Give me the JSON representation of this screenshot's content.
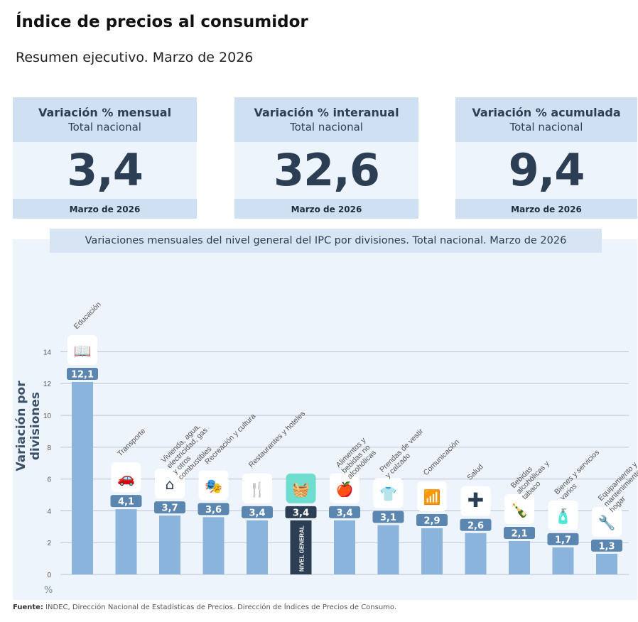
{
  "header": {
    "title": "Índice de precios al consumidor",
    "subtitle": "Resumen ejecutivo. Marzo de 2026"
  },
  "cards": [
    {
      "title": "Variación % mensual",
      "scope": "Total nacional",
      "value": "3,4",
      "period": "Marzo de 2026"
    },
    {
      "title": "Variación % interanual",
      "scope": "Total nacional",
      "value": "32,6",
      "period": "Marzo de 2026"
    },
    {
      "title": "Variación % acumulada",
      "scope": "Total nacional",
      "value": "9,4",
      "period": "Marzo de 2026"
    }
  ],
  "colors": {
    "bar": "#8ab4dc",
    "highlight_bar": "#2b3e53",
    "badge": "#5b86b0",
    "highlight_icon": "#6fdcd0"
  },
  "chart_data": {
    "type": "bar",
    "title": "Variaciones mensuales del nivel general del IPC por divisiones. Total nacional. Marzo de 2026",
    "ylabel": "Variación por divisiones",
    "yunit": "%",
    "ylim": [
      0,
      14
    ],
    "yticks": [
      0,
      2,
      4,
      6,
      8,
      10,
      12,
      14
    ],
    "grid": true,
    "highlight_label": "NIVEL GENERAL",
    "categories": [
      "Educación",
      "Transporte",
      "Vivienda, agua, electricidad, gas y otros combustibles",
      "Recreación y cultura",
      "Restaurantes y hoteles",
      "Nivel general",
      "Alimentos y bebidas no alcohólicas",
      "Prendas de vestir y calzado",
      "Comunicación",
      "Salud",
      "Bebidas alcohólicas y tabaco",
      "Bienes y servicios varios",
      "Equipamiento y mantenimiento del hogar"
    ],
    "values": [
      12.1,
      4.1,
      3.7,
      3.6,
      3.4,
      3.4,
      3.4,
      3.1,
      2.9,
      2.6,
      2.1,
      1.7,
      1.3
    ],
    "value_labels": [
      "12,1",
      "4,1",
      "3,7",
      "3,6",
      "3,4",
      "3,4",
      "3,4",
      "3,1",
      "2,9",
      "2,6",
      "2,1",
      "1,7",
      "1,3"
    ],
    "icons": [
      "book-icon",
      "car-icon",
      "house-energy-icon",
      "theater-masks-icon",
      "restaurant-hotel-icon",
      "basket-icon",
      "food-icon",
      "tshirt-icon",
      "wifi-icon",
      "health-cross-icon",
      "bottle-icon",
      "toiletries-icon",
      "tools-icon"
    ]
  },
  "footer": {
    "source_label": "Fuente:",
    "source_text": " INDEC, Dirección Nacional de Estadísticas de Precios. Dirección de Índices de Precios de Consumo."
  }
}
